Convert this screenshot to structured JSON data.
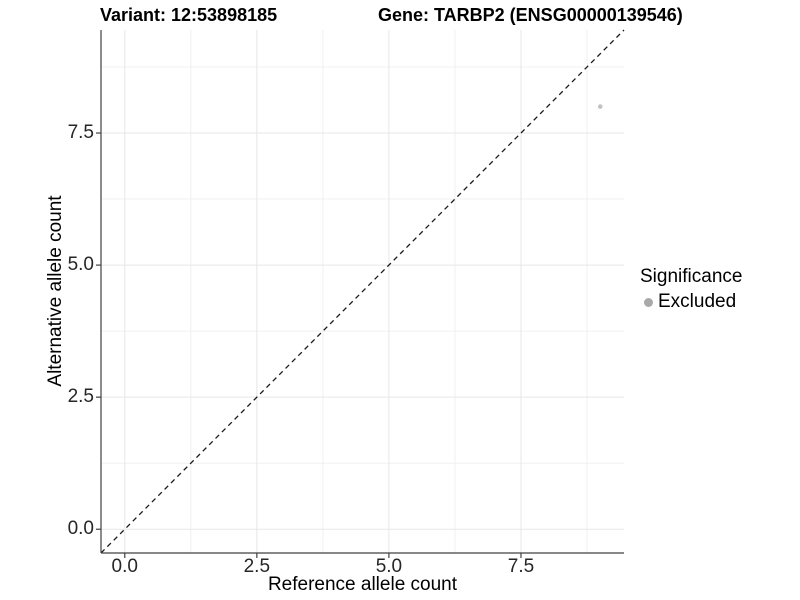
{
  "chart_data": {
    "type": "scatter",
    "title_left": "Variant: 12:53898185",
    "title_right": "Gene: TARBP2 (ENSG00000139546)",
    "xlabel": "Reference allele count",
    "ylabel": "Alternative allele count",
    "xlim": [
      -0.45,
      9.45
    ],
    "ylim": [
      -0.45,
      9.45
    ],
    "x_major_ticks": [
      0,
      2.5,
      5,
      7.5
    ],
    "x_tick_labels": [
      "0.0",
      "2.5",
      "5.0",
      "7.5"
    ],
    "y_major_ticks": [
      0,
      2.5,
      5,
      7.5
    ],
    "y_tick_labels": [
      "0.0",
      "2.5",
      "5.0",
      "7.5"
    ],
    "minor_breaks": [
      1.25,
      3.75,
      6.25,
      8.75
    ],
    "grid": true,
    "identity_line": {
      "slope": 1,
      "intercept": 0,
      "style": "dashed",
      "color": "#1a1a1a"
    },
    "points": [
      {
        "x": 9,
        "y": 8,
        "significance": "Excluded",
        "color": "#c2c2c2",
        "radius": 2.3
      }
    ],
    "legend": {
      "position": "right",
      "title": "Significance",
      "items": [
        {
          "label": "Excluded",
          "color": "#a9a9a9"
        }
      ]
    },
    "colors": {
      "background": "#ffffff",
      "grid_major": "#e7e7e7",
      "grid_minor": "#f0f0f0",
      "axis_line": "#404040",
      "tick_text": "#262626"
    }
  }
}
